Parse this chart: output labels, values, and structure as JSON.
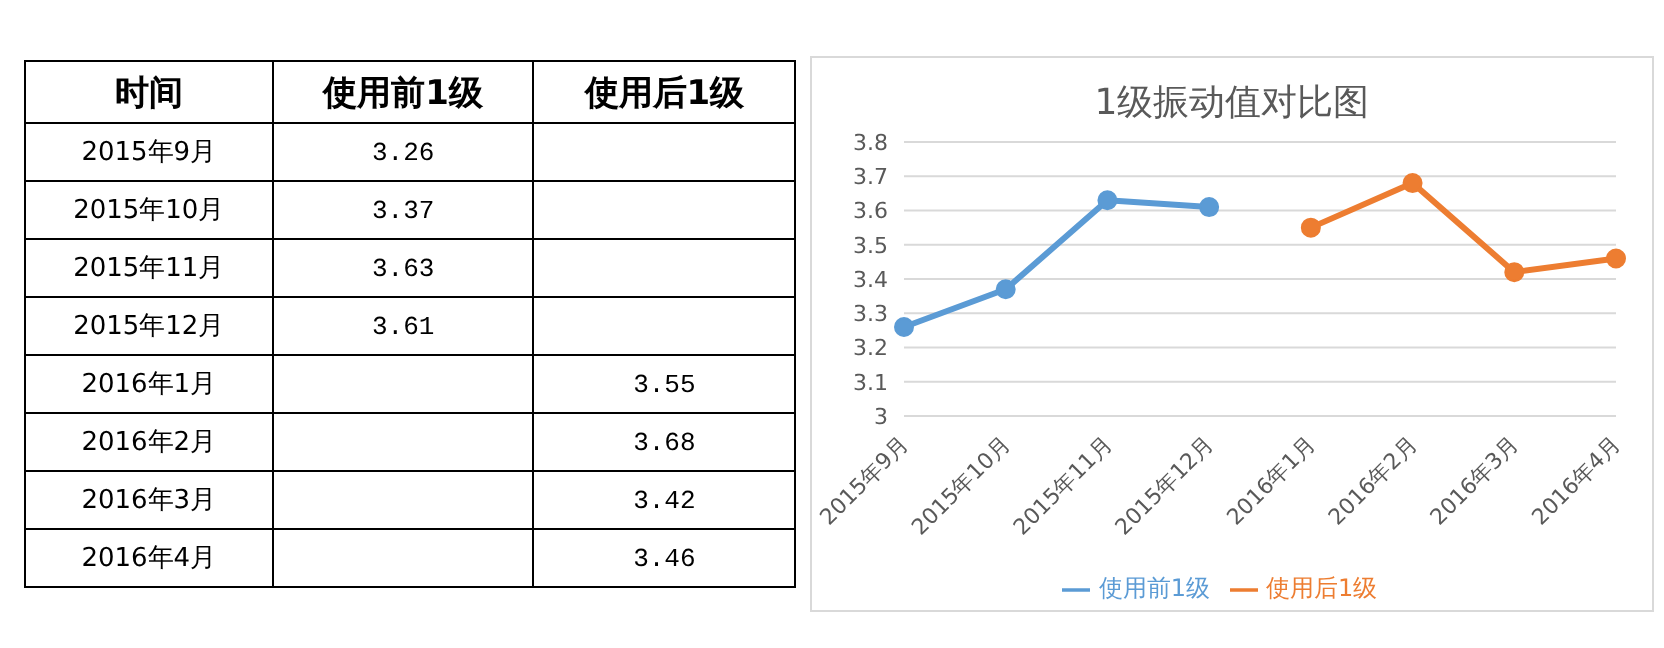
{
  "chart_data": [
    {
      "type": "other",
      "xlabel": "时间",
      "data_labels": true,
      "categories": [
        "2015年9月",
        "2015年10月",
        "2015年11月",
        "2015年12月",
        "2016年1月",
        "2016年2月",
        "2016年3月",
        "2016年4月"
      ],
      "series": [
        {
          "name": "使用前1级",
          "values": [
            3.26,
            3.37,
            3.63,
            3.61,
            null,
            null,
            null,
            null
          ]
        },
        {
          "name": "使用后1级",
          "values": [
            null,
            null,
            null,
            null,
            3.55,
            3.68,
            3.42,
            3.46
          ]
        }
      ]
    },
    {
      "type": "line",
      "title": "1级振动值对比图",
      "categories": [
        "2015年9月",
        "2015年10月",
        "2015年11月",
        "2015年12月",
        "2016年1月",
        "2016年2月",
        "2016年3月",
        "2016年4月"
      ],
      "series": [
        {
          "name": "使用前1级",
          "color": "#5b9bd5",
          "values": [
            3.26,
            3.37,
            3.63,
            3.61,
            null,
            null,
            null,
            null
          ]
        },
        {
          "name": "使用后1级",
          "color": "#ed7d31",
          "values": [
            null,
            null,
            null,
            null,
            3.55,
            3.68,
            3.42,
            3.46
          ]
        }
      ],
      "ylim": [
        3,
        3.8
      ],
      "yticks": [
        3,
        3.1,
        3.2,
        3.3,
        3.4,
        3.5,
        3.6,
        3.7,
        3.8
      ],
      "grid": "y",
      "legend": "bottom",
      "marker": "circle",
      "line_style": "solid"
    }
  ]
}
